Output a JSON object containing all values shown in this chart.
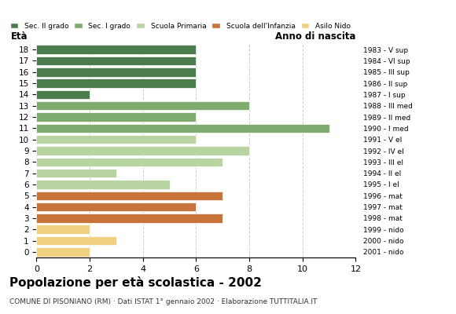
{
  "ages": [
    18,
    17,
    16,
    15,
    14,
    13,
    12,
    11,
    10,
    9,
    8,
    7,
    6,
    5,
    4,
    3,
    2,
    1,
    0
  ],
  "anno_nascita": [
    "1983 - V sup",
    "1984 - VI sup",
    "1985 - III sup",
    "1986 - II sup",
    "1987 - I sup",
    "1988 - III med",
    "1989 - II med",
    "1990 - I med",
    "1991 - V el",
    "1992 - IV el",
    "1993 - III el",
    "1994 - II el",
    "1995 - I el",
    "1996 - mat",
    "1997 - mat",
    "1998 - mat",
    "1999 - nido",
    "2000 - nido",
    "2001 - nido"
  ],
  "values": [
    6,
    6,
    6,
    6,
    2,
    8,
    6,
    11,
    6,
    8,
    7,
    3,
    5,
    7,
    6,
    7,
    2,
    3,
    2
  ],
  "bar_colors": [
    "#4a7c4e",
    "#4a7c4e",
    "#4a7c4e",
    "#4a7c4e",
    "#4a7c4e",
    "#7eab6e",
    "#7eab6e",
    "#7eab6e",
    "#b8d4a0",
    "#b8d4a0",
    "#b8d4a0",
    "#b8d4a0",
    "#b8d4a0",
    "#c8733a",
    "#c8733a",
    "#c8733a",
    "#f0d080",
    "#f0d080",
    "#f0d080"
  ],
  "legend_labels": [
    "Sec. II grado",
    "Sec. I grado",
    "Scuola Primaria",
    "Scuola dell'Infanzia",
    "Asilo Nido"
  ],
  "legend_colors": [
    "#4a7c4e",
    "#7eab6e",
    "#b8d4a0",
    "#c8733a",
    "#f0d080"
  ],
  "title": "Popolazione per età scolastica - 2002",
  "subtitle": "COMUNE DI PISONIANO (RM) · Dati ISTAT 1° gennaio 2002 · Elaborazione TUTTITALIA.IT",
  "xlabel_left": "Età",
  "xlabel_right": "Anno di nascita",
  "xlim": [
    0,
    12
  ],
  "xticks": [
    0,
    2,
    4,
    6,
    8,
    10,
    12
  ],
  "background_color": "#ffffff",
  "grid_color": "#cccccc"
}
